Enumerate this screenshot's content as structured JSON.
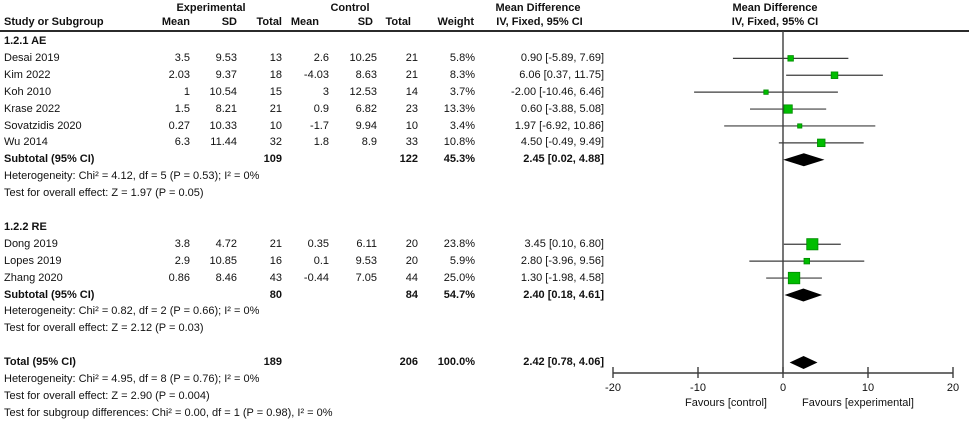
{
  "header": {
    "experimental": "Experimental",
    "control": "Control",
    "md_col": "Mean Difference",
    "md_plot": "Mean Difference",
    "cols": {
      "study": "Study or Subgroup",
      "mean_e": "Mean",
      "sd_e": "SD",
      "total_e": "Total",
      "mean_c": "Mean",
      "sd_c": "SD",
      "total_c": "Total",
      "weight": "Weight",
      "ci": "IV, Fixed, 95% CI",
      "ci_plot": "IV, Fixed, 95% CI"
    }
  },
  "chart_data": {
    "type": "forest",
    "title": "Mean Difference IV, Fixed, 95% CI",
    "xlim": [
      -20,
      20
    ],
    "x_ticks": [
      "-20",
      "-10",
      "0",
      "10",
      "20"
    ],
    "favours_left": "Favours [control]",
    "favours_right": "Favours [experimental]",
    "marker_color": "#00bd00",
    "marker_edge_color": "#008a00",
    "line_color": "#3d3d3d",
    "diamond_color": "#000000",
    "sections": [
      {
        "label": "1.2.1 AE",
        "studies": [
          {
            "study": "Desai 2019",
            "mean_e": "3.5",
            "sd_e": "9.53",
            "total_e": "13",
            "mean_c": "2.6",
            "sd_c": "10.25",
            "total_c": "21",
            "weight": "5.8%",
            "weight_pct": 5.8,
            "ci_text": "0.90 [-5.89, 7.69]",
            "est": 0.9,
            "lo": -5.89,
            "hi": 7.69
          },
          {
            "study": "Kim 2022",
            "mean_e": "2.03",
            "sd_e": "9.37",
            "total_e": "18",
            "mean_c": "-4.03",
            "sd_c": "8.63",
            "total_c": "21",
            "weight": "8.3%",
            "weight_pct": 8.3,
            "ci_text": "6.06 [0.37, 11.75]",
            "est": 6.06,
            "lo": 0.37,
            "hi": 11.75
          },
          {
            "study": "Koh 2010",
            "mean_e": "1",
            "sd_e": "10.54",
            "total_e": "15",
            "mean_c": "3",
            "sd_c": "12.53",
            "total_c": "14",
            "weight": "3.7%",
            "weight_pct": 3.7,
            "ci_text": "-2.00 [-10.46, 6.46]",
            "est": -2.0,
            "lo": -10.46,
            "hi": 6.46
          },
          {
            "study": "Krase 2022",
            "mean_e": "1.5",
            "sd_e": "8.21",
            "total_e": "21",
            "mean_c": "0.9",
            "sd_c": "6.82",
            "total_c": "23",
            "weight": "13.3%",
            "weight_pct": 13.3,
            "ci_text": "0.60 [-3.88, 5.08]",
            "est": 0.6,
            "lo": -3.88,
            "hi": 5.08
          },
          {
            "study": "Sovatzidis 2020",
            "mean_e": "0.27",
            "sd_e": "10.33",
            "total_e": "10",
            "mean_c": "-1.7",
            "sd_c": "9.94",
            "total_c": "10",
            "weight": "3.4%",
            "weight_pct": 3.4,
            "ci_text": "1.97 [-6.92, 10.86]",
            "est": 1.97,
            "lo": -6.92,
            "hi": 10.86
          },
          {
            "study": "Wu 2014",
            "mean_e": "6.3",
            "sd_e": "11.44",
            "total_e": "32",
            "mean_c": "1.8",
            "sd_c": "8.9",
            "total_c": "33",
            "weight": "10.8%",
            "weight_pct": 10.8,
            "ci_text": "4.50 [-0.49, 9.49]",
            "est": 4.5,
            "lo": -0.49,
            "hi": 9.49
          }
        ],
        "subtotal": {
          "label": "Subtotal (95% CI)",
          "total_e": "109",
          "total_c": "122",
          "weight": "45.3%",
          "ci_text": "2.45 [0.02, 4.88]",
          "est": 2.45,
          "lo": 0.02,
          "hi": 4.88
        },
        "heterogeneity": "Heterogeneity: Chi² = 4.12, df = 5 (P = 0.53); I² = 0%",
        "overall_effect": "Test for overall effect: Z = 1.97 (P = 0.05)"
      },
      {
        "label": "1.2.2 RE",
        "studies": [
          {
            "study": "Dong 2019",
            "mean_e": "3.8",
            "sd_e": "4.72",
            "total_e": "21",
            "mean_c": "0.35",
            "sd_c": "6.11",
            "total_c": "20",
            "weight": "23.8%",
            "weight_pct": 23.8,
            "ci_text": "3.45 [0.10, 6.80]",
            "est": 3.45,
            "lo": 0.1,
            "hi": 6.8
          },
          {
            "study": "Lopes 2019",
            "mean_e": "2.9",
            "sd_e": "10.85",
            "total_e": "16",
            "mean_c": "0.1",
            "sd_c": "9.53",
            "total_c": "20",
            "weight": "5.9%",
            "weight_pct": 5.9,
            "ci_text": "2.80 [-3.96, 9.56]",
            "est": 2.8,
            "lo": -3.96,
            "hi": 9.56
          },
          {
            "study": "Zhang 2020",
            "mean_e": "0.86",
            "sd_e": "8.46",
            "total_e": "43",
            "mean_c": "-0.44",
            "sd_c": "7.05",
            "total_c": "44",
            "weight": "25.0%",
            "weight_pct": 25.0,
            "ci_text": "1.30 [-1.98, 4.58]",
            "est": 1.3,
            "lo": -1.98,
            "hi": 4.58
          }
        ],
        "subtotal": {
          "label": "Subtotal (95% CI)",
          "total_e": "80",
          "total_c": "84",
          "weight": "54.7%",
          "ci_text": "2.40 [0.18, 4.61]",
          "est": 2.4,
          "lo": 0.18,
          "hi": 4.61
        },
        "heterogeneity": "Heterogeneity: Chi² = 0.82, df = 2 (P = 0.66); I² = 0%",
        "overall_effect": "Test for overall effect: Z = 2.12 (P = 0.03)"
      }
    ],
    "total": {
      "label": "Total (95% CI)",
      "total_e": "189",
      "total_c": "206",
      "weight": "100.0%",
      "ci_text": "2.42 [0.78, 4.06]",
      "est": 2.42,
      "lo": 0.78,
      "hi": 4.06
    },
    "total_heterogeneity": "Heterogeneity: Chi² = 4.95, df = 8 (P = 0.76); I² = 0%",
    "total_overall_effect": "Test for overall effect: Z = 2.90 (P = 0.004)",
    "subgroup_differences": "Test for subgroup differences: Chi² = 0.00, df = 1 (P = 0.98), I² = 0%"
  }
}
